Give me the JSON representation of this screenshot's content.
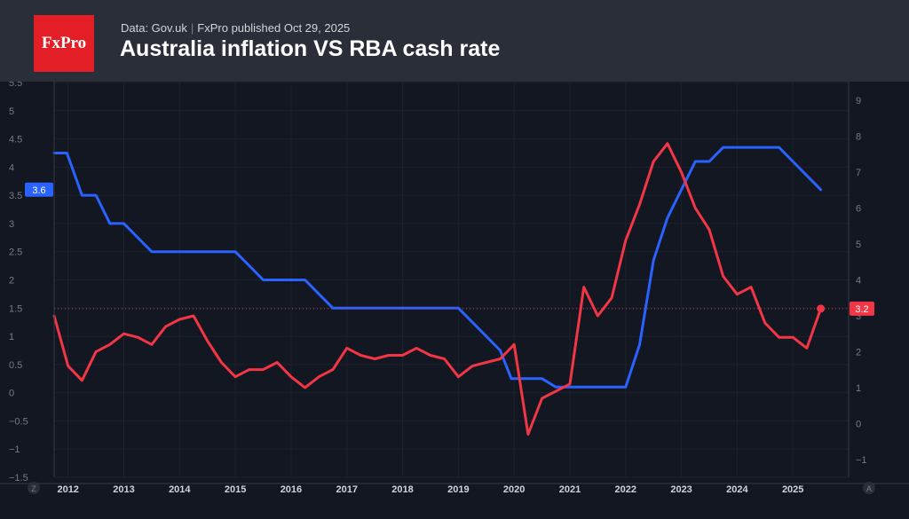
{
  "header": {
    "logo_text": "FxPro",
    "source": "Data: Gov.uk",
    "separator": "|",
    "published": "FxPro published Oct 29, 2025",
    "title": "Australia inflation VS RBA cash rate"
  },
  "colors": {
    "background": "#131722",
    "header": "#2a2e39",
    "rba": "#2962ff",
    "inflation": "#f23645",
    "grid": "#1e222d",
    "axis_text": "#787b86"
  },
  "icons": {
    "left_corner": "Z",
    "right_corner": "A"
  },
  "chart_data": {
    "type": "line",
    "title": "Australia inflation VS RBA cash rate",
    "xlabel": "",
    "x_ticks": [
      "2012",
      "2013",
      "2014",
      "2015",
      "2016",
      "2017",
      "2018",
      "2019",
      "2020",
      "2021",
      "2022",
      "2023",
      "2024",
      "2025"
    ],
    "left_axis": {
      "min": -1.5,
      "max": 5.5,
      "ticks": [
        "5.5",
        "5",
        "4.5",
        "4",
        "3.5",
        "3",
        "2.5",
        "2",
        "1.5",
        "1",
        "0.5",
        "0",
        "−0.5",
        "−1",
        "−1.5"
      ]
    },
    "right_axis": {
      "min": -1.5,
      "max": 9.5,
      "ticks": [
        "9",
        "8",
        "7",
        "6",
        "5",
        "4",
        "3",
        "2",
        "1",
        "0",
        "−1"
      ]
    },
    "series": [
      {
        "name": "RBA cash rate",
        "axis": "left",
        "color": "#2962ff",
        "last_value_label": "3.6",
        "x": [
          2011.75,
          2011.98,
          2012.25,
          2012.5,
          2012.75,
          2013.0,
          2013.25,
          2013.5,
          2013.75,
          2014.0,
          2014.5,
          2015.0,
          2015.25,
          2015.5,
          2016.0,
          2016.25,
          2016.5,
          2016.75,
          2017.0,
          2018.0,
          2019.0,
          2019.25,
          2019.5,
          2019.75,
          2019.95,
          2020.25,
          2020.5,
          2020.75,
          2021.0,
          2022.0,
          2022.25,
          2022.5,
          2022.75,
          2023.0,
          2023.25,
          2023.5,
          2023.75,
          2024.0,
          2024.75,
          2025.0,
          2025.25,
          2025.5
        ],
        "y": [
          4.25,
          4.25,
          3.5,
          3.5,
          3.0,
          3.0,
          2.75,
          2.5,
          2.5,
          2.5,
          2.5,
          2.5,
          2.25,
          2.0,
          2.0,
          2.0,
          1.75,
          1.5,
          1.5,
          1.5,
          1.5,
          1.25,
          1.0,
          0.75,
          0.25,
          0.25,
          0.25,
          0.1,
          0.1,
          0.1,
          0.85,
          2.35,
          3.1,
          3.6,
          4.1,
          4.1,
          4.35,
          4.35,
          4.35,
          4.1,
          3.85,
          3.6
        ]
      },
      {
        "name": "Australia inflation",
        "axis": "right",
        "color": "#f23645",
        "last_value_label": "3.2",
        "x": [
          2011.75,
          2012.0,
          2012.25,
          2012.5,
          2012.75,
          2013.0,
          2013.25,
          2013.5,
          2013.75,
          2014.0,
          2014.25,
          2014.5,
          2014.75,
          2015.0,
          2015.25,
          2015.5,
          2015.75,
          2016.0,
          2016.25,
          2016.5,
          2016.75,
          2017.0,
          2017.25,
          2017.5,
          2017.75,
          2018.0,
          2018.25,
          2018.5,
          2018.75,
          2019.0,
          2019.25,
          2019.5,
          2019.75,
          2020.0,
          2020.25,
          2020.5,
          2020.75,
          2021.0,
          2021.25,
          2021.5,
          2021.75,
          2022.0,
          2022.25,
          2022.5,
          2022.75,
          2023.0,
          2023.25,
          2023.5,
          2023.75,
          2024.0,
          2024.25,
          2024.5,
          2024.75,
          2025.0,
          2025.25,
          2025.5
        ],
        "y": [
          3.0,
          1.6,
          1.2,
          2.0,
          2.2,
          2.5,
          2.4,
          2.2,
          2.7,
          2.9,
          3.0,
          2.3,
          1.7,
          1.3,
          1.5,
          1.5,
          1.7,
          1.3,
          1.0,
          1.3,
          1.5,
          2.1,
          1.9,
          1.8,
          1.9,
          1.9,
          2.1,
          1.9,
          1.8,
          1.3,
          1.6,
          1.7,
          1.8,
          2.2,
          -0.3,
          0.7,
          0.9,
          1.1,
          3.8,
          3.0,
          3.5,
          5.1,
          6.1,
          7.3,
          7.8,
          7.0,
          6.0,
          5.4,
          4.1,
          3.6,
          3.8,
          2.8,
          2.4,
          2.4,
          2.1,
          3.2
        ]
      }
    ]
  }
}
